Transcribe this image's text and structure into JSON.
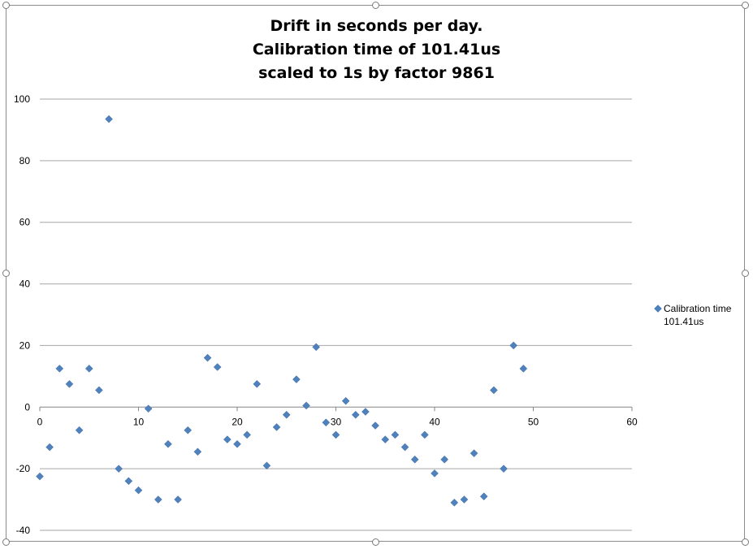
{
  "chart_data": {
    "type": "scatter",
    "title_lines": [
      "Drift in seconds per day.",
      "Calibration time of 101.41us",
      "scaled to 1s by factor 9861"
    ],
    "xlim": [
      0,
      60
    ],
    "ylim": [
      -40,
      100
    ],
    "x_ticks": [
      "0",
      "10",
      "20",
      "30",
      "40",
      "50",
      "60"
    ],
    "y_ticks": [
      "100",
      "80",
      "60",
      "40",
      "20",
      "0",
      "-20",
      "-40"
    ],
    "grid": true,
    "legend_position": "right",
    "series": [
      {
        "name": "Calibration time 101.41us",
        "color": "#4f81bd",
        "marker": "diamond",
        "x": [
          0,
          1,
          2,
          3,
          4,
          5,
          6,
          7,
          8,
          9,
          10,
          11,
          12,
          13,
          14,
          15,
          16,
          17,
          18,
          19,
          20,
          21,
          22,
          23,
          24,
          25,
          26,
          27,
          28,
          29,
          30,
          31,
          32,
          33,
          34,
          35,
          36,
          37,
          38,
          39,
          40,
          41,
          42,
          43,
          44,
          45,
          46,
          47,
          48,
          49
        ],
        "y": [
          -22.5,
          -13,
          12.5,
          7.5,
          -7.5,
          12.5,
          5.5,
          93.5,
          -20,
          -24,
          -27,
          -0.5,
          -30,
          -12,
          -30,
          -7.5,
          -14.5,
          16,
          13,
          -10.5,
          -12,
          -9,
          7.5,
          -19,
          -6.5,
          -2.5,
          9,
          0.5,
          19.5,
          -5,
          -9,
          2,
          -2.5,
          -1.5,
          -6,
          -10.5,
          -9,
          -13,
          -17,
          -9,
          -21.5,
          -17,
          -31,
          -30,
          -15,
          -29,
          5.5,
          -20,
          20,
          12.5
        ]
      }
    ]
  }
}
